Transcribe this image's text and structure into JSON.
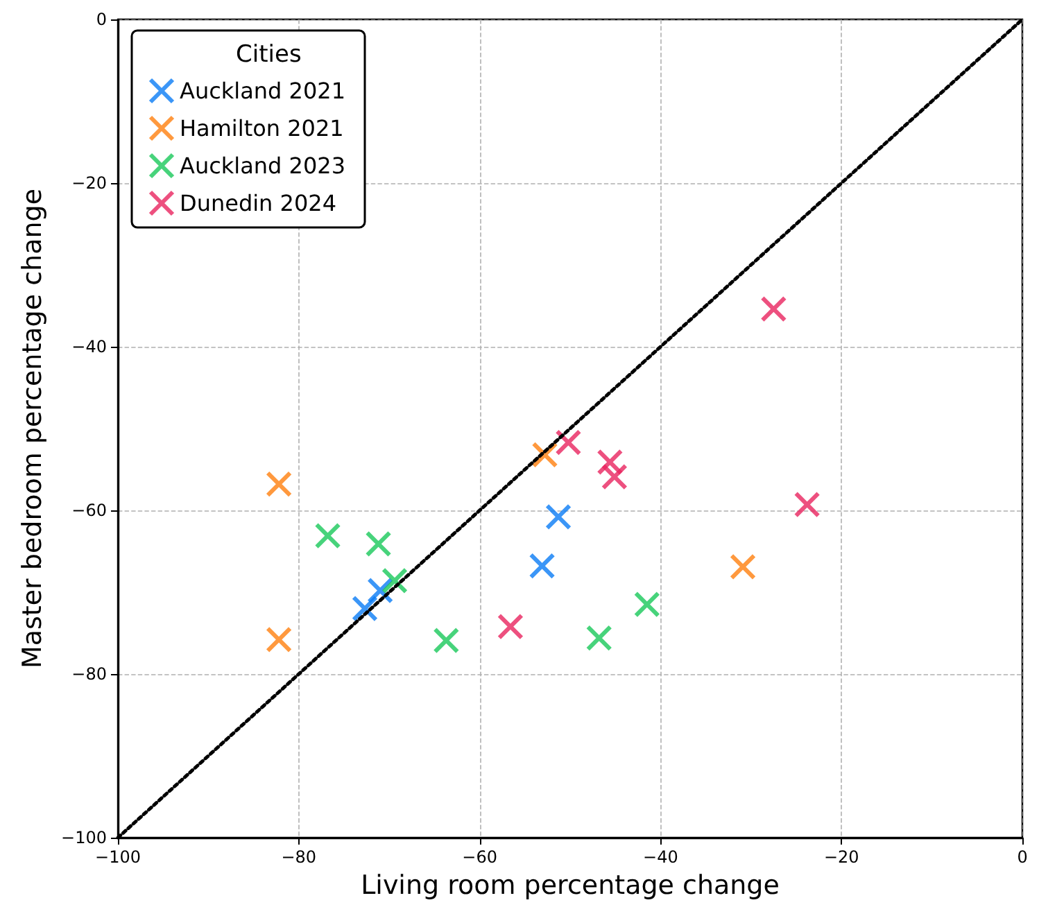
{
  "chart_data": {
    "type": "scatter",
    "xlabel": "Living room percentage change",
    "ylabel": "Master bedroom percentage change",
    "legend_title": "Cities",
    "xlim": [
      -100,
      0
    ],
    "xticks": [
      -100,
      -80,
      -60,
      -40,
      -20,
      0
    ],
    "ylim": [
      -100,
      0
    ],
    "yticks": [
      -100,
      -80,
      -60,
      -40,
      -20,
      0
    ],
    "grid": true,
    "legend": "top left",
    "marker": "cross",
    "series": [
      {
        "name": "Auckland 2021",
        "color": "#0a7cf5",
        "x": [
          -72.7,
          -71.0,
          -51.3,
          -53.1
        ],
        "values": [
          -72.0,
          -69.8,
          -60.8,
          -66.8
        ]
      },
      {
        "name": "Hamilton 2021",
        "color": "#ff7f0e",
        "x": [
          -82.2,
          -82.2,
          -52.8,
          -30.9
        ],
        "values": [
          -56.8,
          -75.8,
          -53.2,
          -66.9
        ]
      },
      {
        "name": "Auckland 2023",
        "color": "#19c85a",
        "x": [
          -76.8,
          -71.2,
          -69.4,
          -63.7,
          -46.8,
          -41.5
        ],
        "values": [
          -63.1,
          -64.1,
          -68.6,
          -75.9,
          -75.6,
          -71.5
        ]
      },
      {
        "name": "Dunedin 2024",
        "color": "#e8245f",
        "x": [
          -27.5,
          -23.8,
          -50.2,
          -45.6,
          -45.1,
          -56.6
        ],
        "values": [
          -35.4,
          -59.3,
          -51.7,
          -54.1,
          -55.9,
          -74.2
        ]
      },
      {
        "type": "line",
        "color": "#000000",
        "marker": "none",
        "line_style": "dotted",
        "x": [
          -100,
          0
        ],
        "values": [
          -100,
          0
        ]
      }
    ]
  }
}
